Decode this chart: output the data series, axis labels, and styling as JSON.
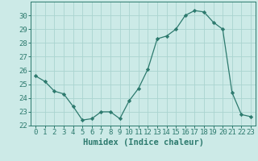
{
  "x": [
    0,
    1,
    2,
    3,
    4,
    5,
    6,
    7,
    8,
    9,
    10,
    11,
    12,
    13,
    14,
    15,
    16,
    17,
    18,
    19,
    20,
    21,
    22,
    23
  ],
  "y": [
    25.6,
    25.2,
    24.5,
    24.3,
    23.4,
    22.4,
    22.5,
    23.0,
    23.0,
    22.5,
    23.8,
    24.7,
    26.1,
    28.3,
    28.5,
    29.0,
    30.0,
    30.35,
    30.25,
    29.5,
    29.0,
    24.4,
    22.8,
    22.65
  ],
  "line_color": "#2d7a6e",
  "marker": "D",
  "marker_size": 2.2,
  "bg_color": "#cceae7",
  "grid_color": "#aad4d0",
  "xlabel": "Humidex (Indice chaleur)",
  "ylim": [
    22,
    31
  ],
  "yticks": [
    22,
    23,
    24,
    25,
    26,
    27,
    28,
    29,
    30
  ],
  "xlim": [
    -0.5,
    23.5
  ],
  "xticks": [
    0,
    1,
    2,
    3,
    4,
    5,
    6,
    7,
    8,
    9,
    10,
    11,
    12,
    13,
    14,
    15,
    16,
    17,
    18,
    19,
    20,
    21,
    22,
    23
  ],
  "axis_color": "#2d7a6e",
  "tick_label_fontsize": 6.5,
  "xlabel_fontsize": 7.5
}
